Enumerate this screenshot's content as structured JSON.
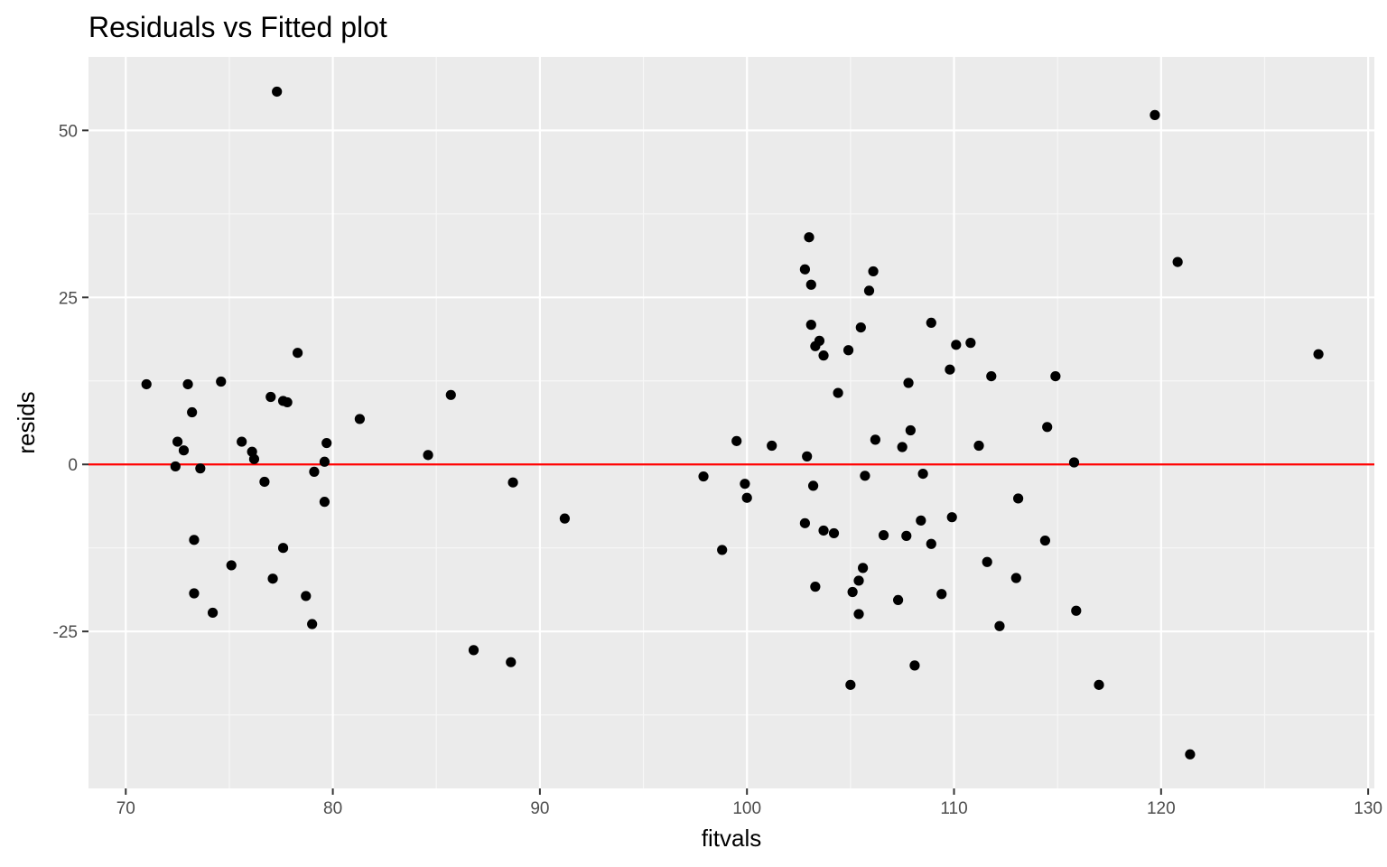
{
  "chart_data": {
    "type": "scatter",
    "title": "Residuals vs Fitted plot",
    "xlabel": "fitvals",
    "ylabel": "resids",
    "xlim": [
      68.2,
      130.3
    ],
    "ylim": [
      -48.5,
      61.0
    ],
    "x_ticks": [
      70,
      80,
      90,
      100,
      110,
      120,
      130
    ],
    "y_ticks": [
      50,
      25,
      0,
      -25
    ],
    "x_tick_labels": [
      "70",
      "80",
      "90",
      "100",
      "110",
      "120",
      "130"
    ],
    "y_tick_labels": [
      "50",
      "25",
      "0",
      "-25"
    ],
    "grid": true,
    "reference_line": {
      "y": 0,
      "color": "#ff0000"
    },
    "point_color": "#000000",
    "points": [
      [
        77.3,
        55.8
      ],
      [
        119.7,
        52.3
      ],
      [
        120.8,
        30.3
      ],
      [
        127.6,
        16.5
      ],
      [
        103.0,
        34.0
      ],
      [
        102.8,
        29.2
      ],
      [
        103.1,
        26.9
      ],
      [
        103.1,
        20.9
      ],
      [
        103.3,
        17.7
      ],
      [
        103.5,
        18.5
      ],
      [
        103.7,
        16.3
      ],
      [
        104.4,
        10.7
      ],
      [
        104.9,
        17.1
      ],
      [
        105.5,
        20.5
      ],
      [
        105.9,
        26.0
      ],
      [
        106.1,
        28.9
      ],
      [
        108.9,
        21.2
      ],
      [
        109.8,
        14.2
      ],
      [
        110.1,
        17.9
      ],
      [
        110.8,
        18.2
      ],
      [
        111.8,
        13.2
      ],
      [
        114.9,
        13.2
      ],
      [
        107.8,
        12.2
      ],
      [
        107.9,
        5.1
      ],
      [
        106.2,
        3.7
      ],
      [
        107.5,
        2.6
      ],
      [
        111.2,
        2.8
      ],
      [
        114.5,
        5.6
      ],
      [
        115.8,
        0.3
      ],
      [
        102.9,
        1.2
      ],
      [
        101.2,
        2.8
      ],
      [
        99.5,
        3.5
      ],
      [
        97.9,
        -1.8
      ],
      [
        99.9,
        -2.9
      ],
      [
        100.0,
        -5.0
      ],
      [
        98.8,
        -12.8
      ],
      [
        103.2,
        -3.2
      ],
      [
        102.8,
        -8.8
      ],
      [
        103.7,
        -9.9
      ],
      [
        104.2,
        -10.3
      ],
      [
        105.7,
        -1.7
      ],
      [
        106.6,
        -10.6
      ],
      [
        107.7,
        -10.7
      ],
      [
        108.4,
        -8.4
      ],
      [
        108.5,
        -1.4
      ],
      [
        108.9,
        -11.9
      ],
      [
        109.9,
        -7.9
      ],
      [
        113.1,
        -5.1
      ],
      [
        114.4,
        -11.4
      ],
      [
        103.3,
        -18.3
      ],
      [
        105.1,
        -19.1
      ],
      [
        105.4,
        -17.4
      ],
      [
        105.6,
        -15.5
      ],
      [
        105.4,
        -22.4
      ],
      [
        107.3,
        -20.3
      ],
      [
        109.4,
        -19.4
      ],
      [
        111.6,
        -14.6
      ],
      [
        113.0,
        -17.0
      ],
      [
        112.2,
        -24.2
      ],
      [
        115.9,
        -21.9
      ],
      [
        105.0,
        -33.0
      ],
      [
        108.1,
        -30.1
      ],
      [
        117.0,
        -33.0
      ],
      [
        121.4,
        -43.4
      ],
      [
        71.0,
        12.0
      ],
      [
        72.5,
        3.4
      ],
      [
        72.8,
        2.1
      ],
      [
        72.4,
        -0.3
      ],
      [
        73.0,
        12.0
      ],
      [
        73.2,
        7.8
      ],
      [
        73.6,
        -0.6
      ],
      [
        74.6,
        12.4
      ],
      [
        73.3,
        -11.3
      ],
      [
        73.3,
        -19.3
      ],
      [
        74.2,
        -22.2
      ],
      [
        75.1,
        -15.1
      ],
      [
        75.6,
        3.4
      ],
      [
        76.1,
        1.9
      ],
      [
        76.2,
        0.8
      ],
      [
        76.7,
        -2.6
      ],
      [
        77.0,
        10.1
      ],
      [
        77.6,
        9.5
      ],
      [
        77.8,
        9.3
      ],
      [
        77.6,
        -12.5
      ],
      [
        77.1,
        -17.1
      ],
      [
        78.3,
        16.7
      ],
      [
        78.7,
        -19.7
      ],
      [
        79.0,
        -23.9
      ],
      [
        79.1,
        -1.1
      ],
      [
        79.6,
        0.4
      ],
      [
        79.6,
        -5.6
      ],
      [
        79.7,
        3.2
      ],
      [
        81.3,
        6.8
      ],
      [
        84.6,
        1.4
      ],
      [
        85.7,
        10.4
      ],
      [
        86.8,
        -27.8
      ],
      [
        88.6,
        -29.6
      ],
      [
        88.7,
        -2.7
      ],
      [
        91.2,
        -8.1
      ]
    ]
  }
}
